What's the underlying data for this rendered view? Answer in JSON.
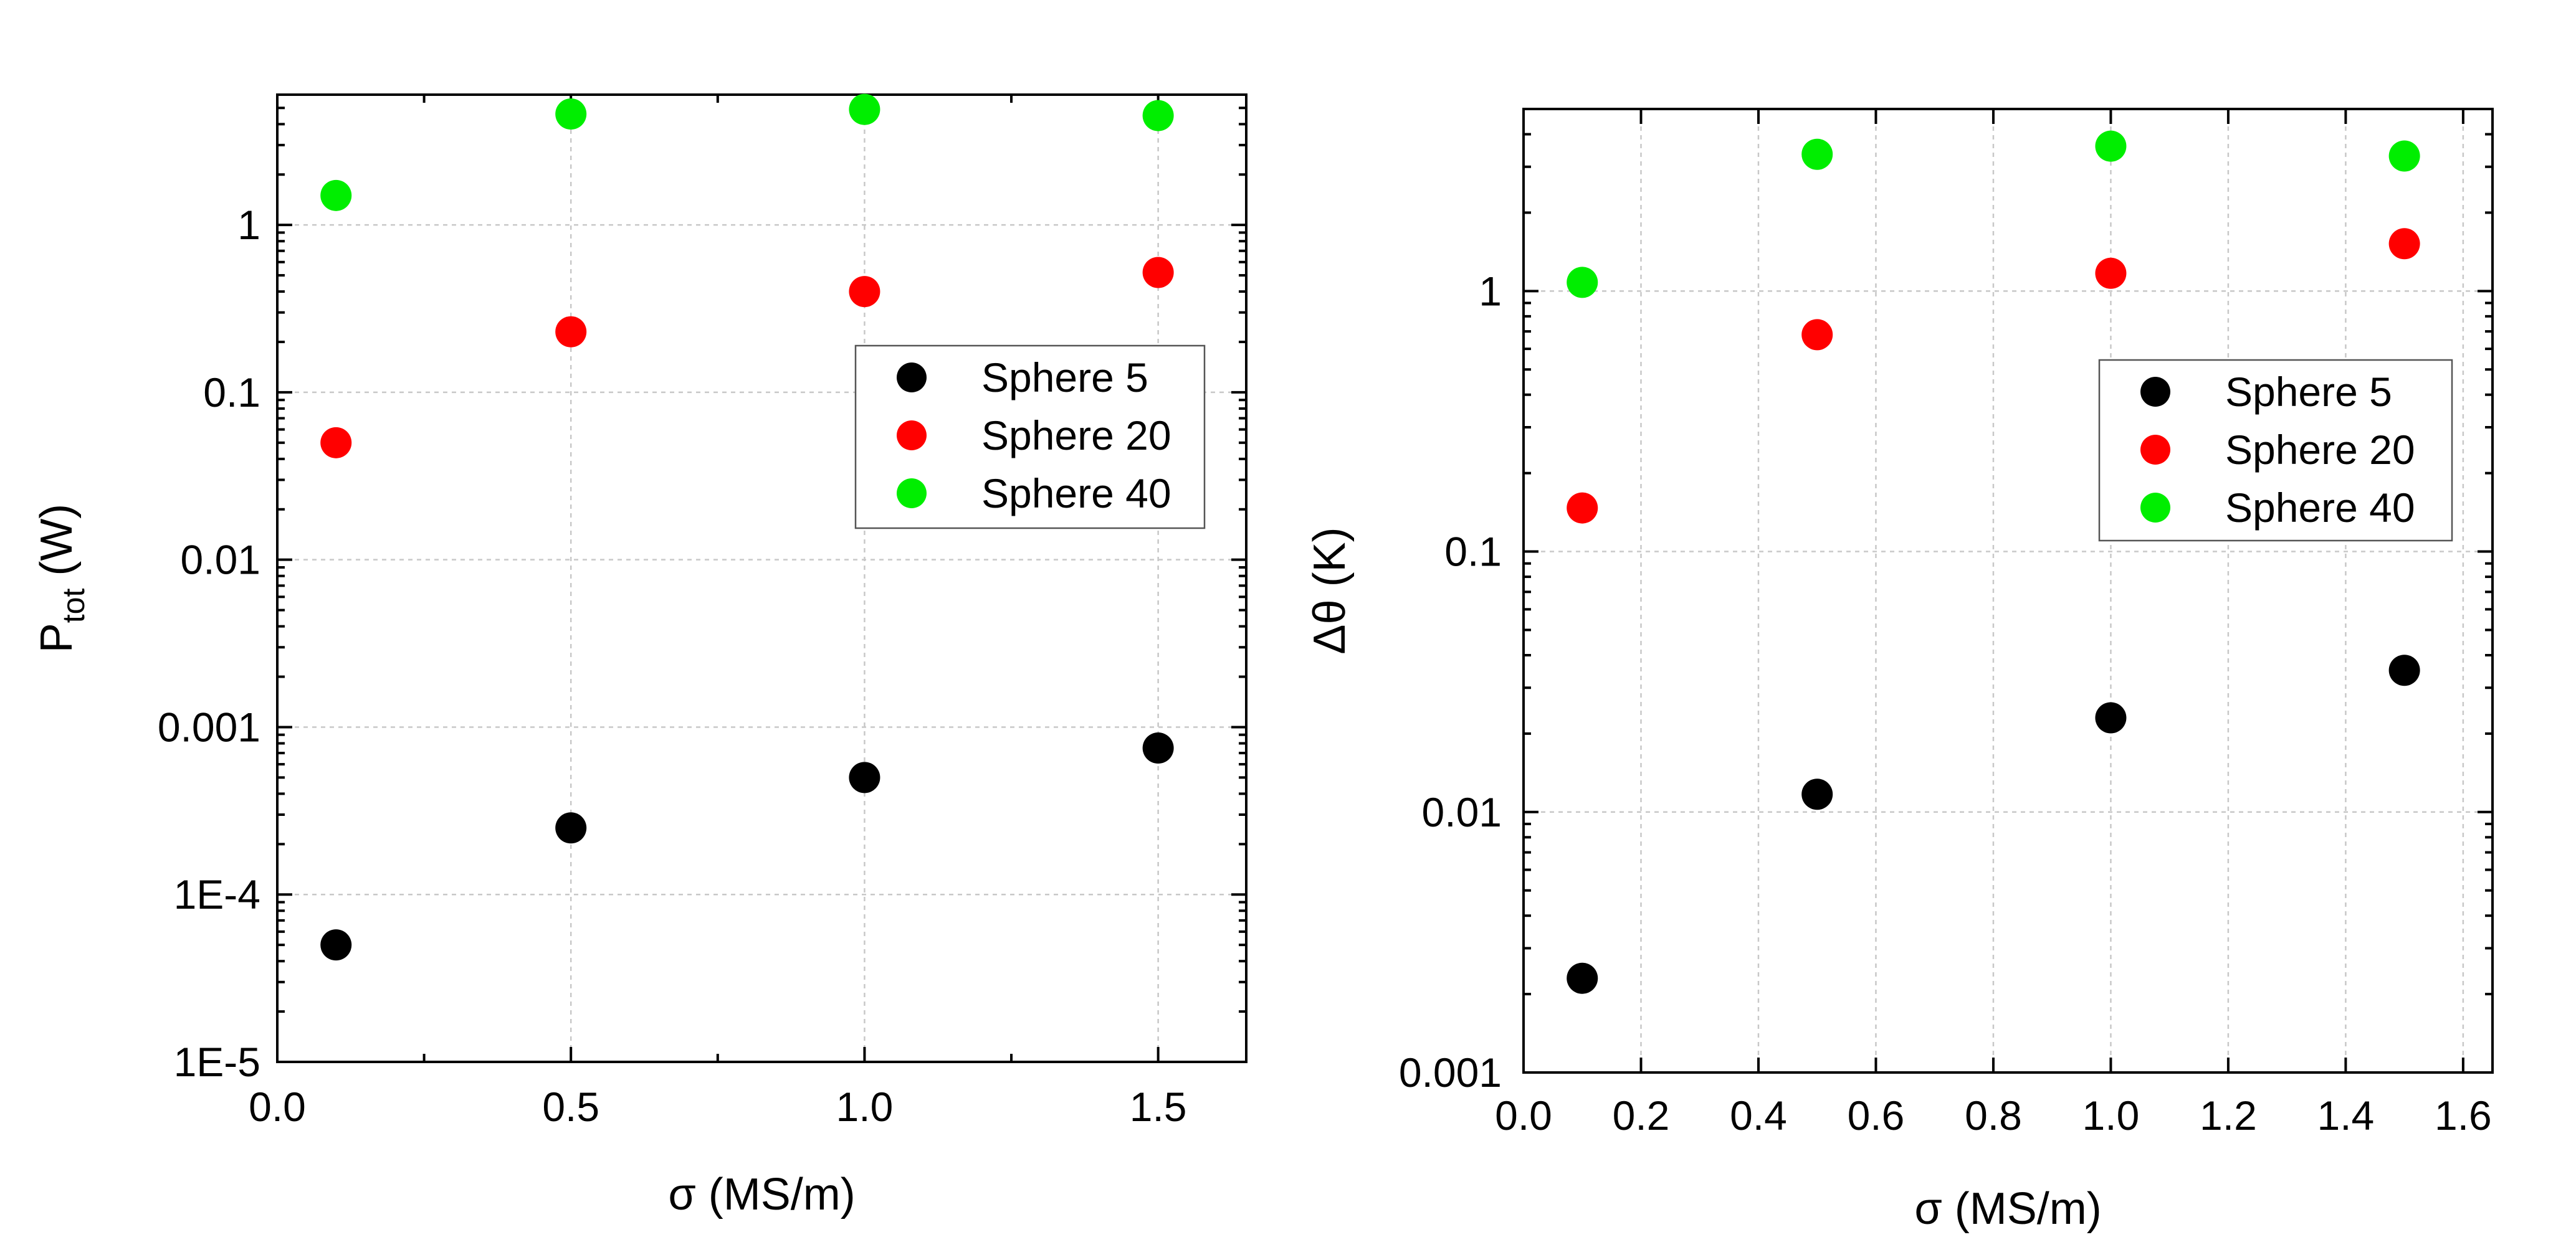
{
  "chart_data": [
    {
      "type": "scatter",
      "yscale": "log",
      "xlabel": "σ (MS/m)",
      "ylabel": {
        "main": "P",
        "sub": "tot",
        "unit": " (W)"
      },
      "xlim": [
        0.0,
        1.65
      ],
      "ylim": [
        1e-05,
        6
      ],
      "xticks": [
        0.0,
        0.5,
        1.0,
        1.5
      ],
      "xtick_labels": [
        "0.0",
        "0.5",
        "1.0",
        "1.5"
      ],
      "yticks": [
        1e-05,
        0.0001,
        0.001,
        0.01,
        0.1,
        1
      ],
      "ytick_labels": [
        "1E-5",
        "1E-4",
        "0.001",
        "0.01",
        "0.1",
        "1"
      ],
      "grid": true,
      "legend_position": "right",
      "x": [
        0.1,
        0.5,
        1.0,
        1.5
      ],
      "series": [
        {
          "name": "Sphere 5",
          "color": "#000000",
          "values": [
            5e-05,
            0.00025,
            0.0005,
            0.00075
          ]
        },
        {
          "name": "Sphere 20",
          "color": "#ff0000",
          "values": [
            0.05,
            0.23,
            0.4,
            0.52
          ]
        },
        {
          "name": "Sphere 40",
          "color": "#00ee00",
          "values": [
            1.5,
            4.6,
            4.9,
            4.5
          ]
        }
      ]
    },
    {
      "type": "scatter",
      "yscale": "log",
      "xlabel": "σ (MS/m)",
      "ylabel": {
        "main": "Δθ (K)"
      },
      "xlim": [
        0.0,
        1.65
      ],
      "ylim": [
        0.001,
        5
      ],
      "xticks": [
        0.0,
        0.2,
        0.4,
        0.6,
        0.8,
        1.0,
        1.2,
        1.4,
        1.6
      ],
      "xtick_labels": [
        "0.0",
        "0.2",
        "0.4",
        "0.6",
        "0.8",
        "1.0",
        "1.2",
        "1.4",
        "1.6"
      ],
      "yticks": [
        0.001,
        0.01,
        0.1,
        1
      ],
      "ytick_labels": [
        "0.001",
        "0.01",
        "0.1",
        "1"
      ],
      "grid": true,
      "legend_position": "right",
      "x": [
        0.1,
        0.5,
        1.0,
        1.5
      ],
      "series": [
        {
          "name": "Sphere 5",
          "color": "#000000",
          "values": [
            0.0023,
            0.0117,
            0.023,
            0.035
          ]
        },
        {
          "name": "Sphere 20",
          "color": "#ff0000",
          "values": [
            0.147,
            0.68,
            1.17,
            1.52
          ]
        },
        {
          "name": "Sphere 40",
          "color": "#00ee00",
          "values": [
            1.08,
            3.35,
            3.6,
            3.3
          ]
        }
      ]
    }
  ]
}
